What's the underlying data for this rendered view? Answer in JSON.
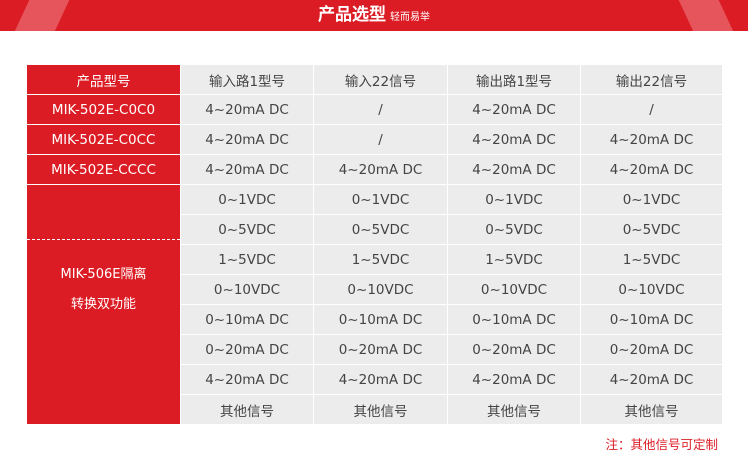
{
  "banner": {
    "title": "产品选型",
    "subtitle": "轻而易举"
  },
  "table": {
    "headers": [
      "产品型号",
      "输入路1型号",
      "输入22信号",
      "输出路1型号",
      "输出22信号"
    ],
    "model_rows": [
      [
        "MIK-502E-C0C0",
        "4~20mA DC",
        "/",
        "4~20mA DC",
        "/"
      ],
      [
        "MIK-502E-C0CC",
        "4~20mA DC",
        "/",
        "4~20mA DC",
        "4~20mA DC"
      ],
      [
        "MIK-502E-CCCC",
        "4~20mA DC",
        "4~20mA DC",
        "4~20mA DC",
        "4~20mA DC"
      ]
    ],
    "group_model_line1": "MIK-506E隔离",
    "group_model_line2": "转换双功能",
    "group_rows": [
      [
        "0~1VDC",
        "0~1VDC",
        "0~1VDC",
        "0~1VDC"
      ],
      [
        "0~5VDC",
        "0~5VDC",
        "0~5VDC",
        "0~5VDC"
      ],
      [
        "1~5VDC",
        "1~5VDC",
        "1~5VDC",
        "1~5VDC"
      ],
      [
        "0~10VDC",
        "0~10VDC",
        "0~10VDC",
        "0~10VDC"
      ],
      [
        "0~10mA DC",
        "0~10mA DC",
        "0~10mA DC",
        "0~10mA DC"
      ],
      [
        "0~20mA DC",
        "0~20mA DC",
        "0~20mA DC",
        "0~20mA DC"
      ],
      [
        "4~20mA DC",
        "4~20mA DC",
        "4~20mA DC",
        "4~20mA DC"
      ],
      [
        "其他信号",
        "其他信号",
        "其他信号",
        "其他信号"
      ]
    ]
  },
  "note": "注：其他信号可定制",
  "colors": {
    "accent": "#dc1c24",
    "cell": "#ececec"
  }
}
